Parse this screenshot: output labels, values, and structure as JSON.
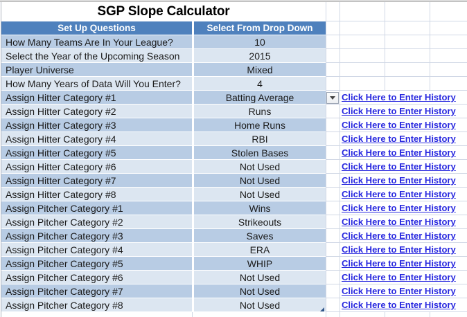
{
  "title": "SGP Slope Calculator",
  "link_label": "Click Here to Enter History",
  "dropdown_arrow_icon": "▼",
  "colors": {
    "header_blue": "#4F81BD",
    "row_dark": "#B8CCE4",
    "row_light": "#DCE6F1",
    "link_blue": "#2828DF",
    "gridline": "#D0D7E5"
  },
  "table": {
    "headers": [
      "Set Up Questions",
      "Select From Drop Down"
    ],
    "rows": [
      {
        "question": "How Many Teams Are In Your League?",
        "value": "10",
        "has_link": false,
        "has_dropdown_arrow": false
      },
      {
        "question": "Select the Year of the Upcoming Season",
        "value": "2015",
        "has_link": false,
        "has_dropdown_arrow": false
      },
      {
        "question": "Player Universe",
        "value": "Mixed",
        "has_link": false,
        "has_dropdown_arrow": false
      },
      {
        "question": "How Many Years of Data Will You Enter?",
        "value": "4",
        "has_link": false,
        "has_dropdown_arrow": false
      },
      {
        "question": "Assign Hitter Category #1",
        "value": "Batting Average",
        "has_link": true,
        "has_dropdown_arrow": true
      },
      {
        "question": "Assign Hitter Category #2",
        "value": "Runs",
        "has_link": true,
        "has_dropdown_arrow": false
      },
      {
        "question": "Assign Hitter Category #3",
        "value": "Home Runs",
        "has_link": true,
        "has_dropdown_arrow": false
      },
      {
        "question": "Assign Hitter Category #4",
        "value": "RBI",
        "has_link": true,
        "has_dropdown_arrow": false
      },
      {
        "question": "Assign Hitter Category #5",
        "value": "Stolen Bases",
        "has_link": true,
        "has_dropdown_arrow": false
      },
      {
        "question": "Assign Hitter Category #6",
        "value": "Not Used",
        "has_link": true,
        "has_dropdown_arrow": false
      },
      {
        "question": "Assign Hitter Category #7",
        "value": "Not Used",
        "has_link": true,
        "has_dropdown_arrow": false
      },
      {
        "question": "Assign Hitter Category #8",
        "value": "Not Used",
        "has_link": true,
        "has_dropdown_arrow": false
      },
      {
        "question": "Assign Pitcher Category #1",
        "value": "Wins",
        "has_link": true,
        "has_dropdown_arrow": false
      },
      {
        "question": "Assign Pitcher Category #2",
        "value": "Strikeouts",
        "has_link": true,
        "has_dropdown_arrow": false
      },
      {
        "question": "Assign Pitcher Category #3",
        "value": "Saves",
        "has_link": true,
        "has_dropdown_arrow": false
      },
      {
        "question": "Assign Pitcher Category #4",
        "value": "ERA",
        "has_link": true,
        "has_dropdown_arrow": false
      },
      {
        "question": "Assign Pitcher Category #5",
        "value": "WHIP",
        "has_link": true,
        "has_dropdown_arrow": false
      },
      {
        "question": "Assign Pitcher Category #6",
        "value": "Not Used",
        "has_link": true,
        "has_dropdown_arrow": false
      },
      {
        "question": "Assign Pitcher Category #7",
        "value": "Not Used",
        "has_link": true,
        "has_dropdown_arrow": false
      },
      {
        "question": "Assign Pitcher Category #8",
        "value": "Not Used",
        "has_link": true,
        "has_dropdown_arrow": false
      }
    ]
  }
}
